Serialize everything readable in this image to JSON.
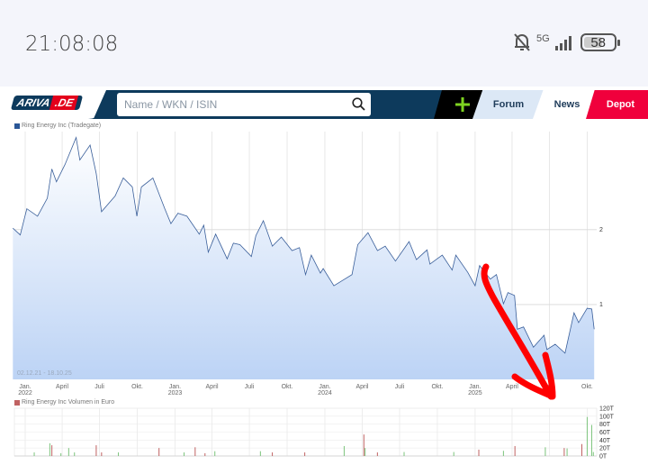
{
  "status_bar": {
    "time": "21:08:08",
    "network": "5G",
    "battery": "58",
    "icons": [
      "bell-off-icon",
      "signal-icon",
      "battery-icon"
    ]
  },
  "header": {
    "logo": "ARIVA.DE",
    "logo_parts": [
      "ARIVA",
      ".DE"
    ],
    "search_placeholder": "Name / WKN / ISIN",
    "plus_icon": "plus-icon",
    "tabs": [
      {
        "label": "Forum"
      },
      {
        "label": "News"
      },
      {
        "label": "Depot"
      }
    ]
  },
  "colors": {
    "navy": "#0d3a5c",
    "accent_green": "#7ed321",
    "depot_red": "#f0003c",
    "price_line": "#3a5f9a",
    "area_fill": "#bcd3f5",
    "vol_up": "#7cc47c",
    "vol_down": "#c06262",
    "annotation": "#ff0000"
  },
  "chart_data": [
    {
      "type": "area",
      "legend": "Ring Energy Inc (Tradegate)",
      "range_label": "02.12.21 - 18.10.25",
      "ylim": [
        0,
        3.31
      ],
      "y_ticks": [
        {
          "value": 2,
          "label": "2"
        },
        {
          "value": 1,
          "label": "1"
        }
      ],
      "x_ticks": [
        {
          "date": "2022-01-01",
          "label": "Jan.",
          "sub": "2022"
        },
        {
          "date": "2022-04-01",
          "label": "April"
        },
        {
          "date": "2022-07-01",
          "label": "Juli"
        },
        {
          "date": "2022-10-01",
          "label": "Okt."
        },
        {
          "date": "2023-01-01",
          "label": "Jan.",
          "sub": "2023"
        },
        {
          "date": "2023-04-01",
          "label": "April"
        },
        {
          "date": "2023-07-01",
          "label": "Juli"
        },
        {
          "date": "2023-10-01",
          "label": "Okt."
        },
        {
          "date": "2024-01-01",
          "label": "Jan.",
          "sub": "2024"
        },
        {
          "date": "2024-04-01",
          "label": "April"
        },
        {
          "date": "2024-07-01",
          "label": "Juli"
        },
        {
          "date": "2024-10-01",
          "label": "Okt."
        },
        {
          "date": "2025-01-01",
          "label": "Jan.",
          "sub": "2025"
        },
        {
          "date": "2025-04-01",
          "label": "April"
        },
        {
          "date": "2025-07-01",
          "label": "Juli"
        },
        {
          "date": "2025-10-01",
          "label": "Okt."
        }
      ],
      "grid": true,
      "points": [
        [
          "2021-12-02",
          2.02
        ],
        [
          "2021-12-20",
          1.93
        ],
        [
          "2022-01-05",
          2.28
        ],
        [
          "2022-01-31",
          2.18
        ],
        [
          "2022-02-24",
          2.42
        ],
        [
          "2022-03-07",
          2.81
        ],
        [
          "2022-03-18",
          2.64
        ],
        [
          "2022-04-08",
          2.87
        ],
        [
          "2022-05-05",
          3.23
        ],
        [
          "2022-05-14",
          2.93
        ],
        [
          "2022-06-08",
          3.13
        ],
        [
          "2022-06-23",
          2.75
        ],
        [
          "2022-07-06",
          2.24
        ],
        [
          "2022-08-08",
          2.45
        ],
        [
          "2022-08-28",
          2.69
        ],
        [
          "2022-09-19",
          2.57
        ],
        [
          "2022-09-30",
          2.18
        ],
        [
          "2022-10-11",
          2.57
        ],
        [
          "2022-11-08",
          2.69
        ],
        [
          "2022-12-07",
          2.28
        ],
        [
          "2022-12-22",
          2.08
        ],
        [
          "2023-01-08",
          2.22
        ],
        [
          "2023-01-30",
          2.18
        ],
        [
          "2023-03-01",
          1.94
        ],
        [
          "2023-03-12",
          2.06
        ],
        [
          "2023-03-23",
          1.7
        ],
        [
          "2023-04-10",
          1.94
        ],
        [
          "2023-05-08",
          1.61
        ],
        [
          "2023-05-23",
          1.82
        ],
        [
          "2023-06-08",
          1.8
        ],
        [
          "2023-07-06",
          1.64
        ],
        [
          "2023-07-17",
          1.92
        ],
        [
          "2023-08-04",
          2.12
        ],
        [
          "2023-08-26",
          1.78
        ],
        [
          "2023-09-17",
          1.9
        ],
        [
          "2023-10-13",
          1.72
        ],
        [
          "2023-10-31",
          1.76
        ],
        [
          "2023-11-15",
          1.4
        ],
        [
          "2023-11-29",
          1.66
        ],
        [
          "2023-12-21",
          1.42
        ],
        [
          "2023-12-28",
          1.48
        ],
        [
          "2024-01-23",
          1.25
        ],
        [
          "2024-03-07",
          1.4
        ],
        [
          "2024-03-21",
          1.8
        ],
        [
          "2024-04-15",
          1.96
        ],
        [
          "2024-05-08",
          1.72
        ],
        [
          "2024-05-27",
          1.78
        ],
        [
          "2024-06-21",
          1.58
        ],
        [
          "2024-07-24",
          1.84
        ],
        [
          "2024-08-11",
          1.6
        ],
        [
          "2024-09-06",
          1.73
        ],
        [
          "2024-09-13",
          1.54
        ],
        [
          "2024-10-13",
          1.66
        ],
        [
          "2024-11-06",
          1.46
        ],
        [
          "2024-11-15",
          1.66
        ],
        [
          "2024-12-14",
          1.43
        ],
        [
          "2025-01-01",
          1.25
        ],
        [
          "2025-01-12",
          1.52
        ],
        [
          "2025-02-07",
          1.34
        ],
        [
          "2025-02-22",
          1.4
        ],
        [
          "2025-03-11",
          1.01
        ],
        [
          "2025-03-22",
          1.16
        ],
        [
          "2025-04-07",
          1.12
        ],
        [
          "2025-04-14",
          0.67
        ],
        [
          "2025-04-29",
          0.7
        ],
        [
          "2025-05-23",
          0.43
        ],
        [
          "2025-06-18",
          0.59
        ],
        [
          "2025-06-25",
          0.4
        ],
        [
          "2025-07-15",
          0.47
        ],
        [
          "2025-08-08",
          0.35
        ],
        [
          "2025-08-30",
          0.89
        ],
        [
          "2025-09-10",
          0.76
        ],
        [
          "2025-10-01",
          0.95
        ],
        [
          "2025-10-12",
          0.94
        ],
        [
          "2025-10-18",
          0.67
        ]
      ]
    },
    {
      "type": "bar",
      "legend": "Ring Energy Inc Volumen in Euro",
      "unit": "T",
      "ylim": [
        0,
        120
      ],
      "y_ticks": [
        "120T",
        "100T",
        "80T",
        "60T",
        "40T",
        "20T",
        "0T"
      ],
      "bars": [
        [
          "2022-01-23",
          9,
          "up"
        ],
        [
          "2022-03-02",
          32,
          "up"
        ],
        [
          "2022-03-07",
          27,
          "down"
        ],
        [
          "2022-03-29",
          7,
          "up"
        ],
        [
          "2022-04-17",
          20,
          "up"
        ],
        [
          "2022-05-01",
          9,
          "up"
        ],
        [
          "2022-06-23",
          27,
          "down"
        ],
        [
          "2022-07-06",
          9,
          "down"
        ],
        [
          "2022-08-16",
          9,
          "up"
        ],
        [
          "2022-11-23",
          20,
          "down"
        ],
        [
          "2023-01-23",
          9,
          "up"
        ],
        [
          "2023-02-19",
          22,
          "down"
        ],
        [
          "2023-03-15",
          7,
          "down"
        ],
        [
          "2023-04-08",
          12,
          "up"
        ],
        [
          "2023-07-28",
          12,
          "up"
        ],
        [
          "2023-08-26",
          9,
          "down"
        ],
        [
          "2023-11-13",
          9,
          "down"
        ],
        [
          "2024-02-17",
          25,
          "up"
        ],
        [
          "2024-04-05",
          54,
          "down"
        ],
        [
          "2024-04-08",
          20,
          "up"
        ],
        [
          "2024-05-08",
          9,
          "down"
        ],
        [
          "2024-07-12",
          10,
          "up"
        ],
        [
          "2024-11-10",
          10,
          "up"
        ],
        [
          "2025-01-10",
          16,
          "down"
        ],
        [
          "2025-03-11",
          13,
          "up"
        ],
        [
          "2025-04-08",
          25,
          "down"
        ],
        [
          "2025-06-21",
          22,
          "up"
        ],
        [
          "2025-08-06",
          20,
          "down"
        ],
        [
          "2025-08-13",
          19,
          "up"
        ],
        [
          "2025-09-18",
          30,
          "down"
        ],
        [
          "2025-10-01",
          98,
          "up"
        ],
        [
          "2025-10-12",
          78,
          "up"
        ],
        [
          "2025-10-16",
          10,
          "up"
        ]
      ]
    }
  ]
}
